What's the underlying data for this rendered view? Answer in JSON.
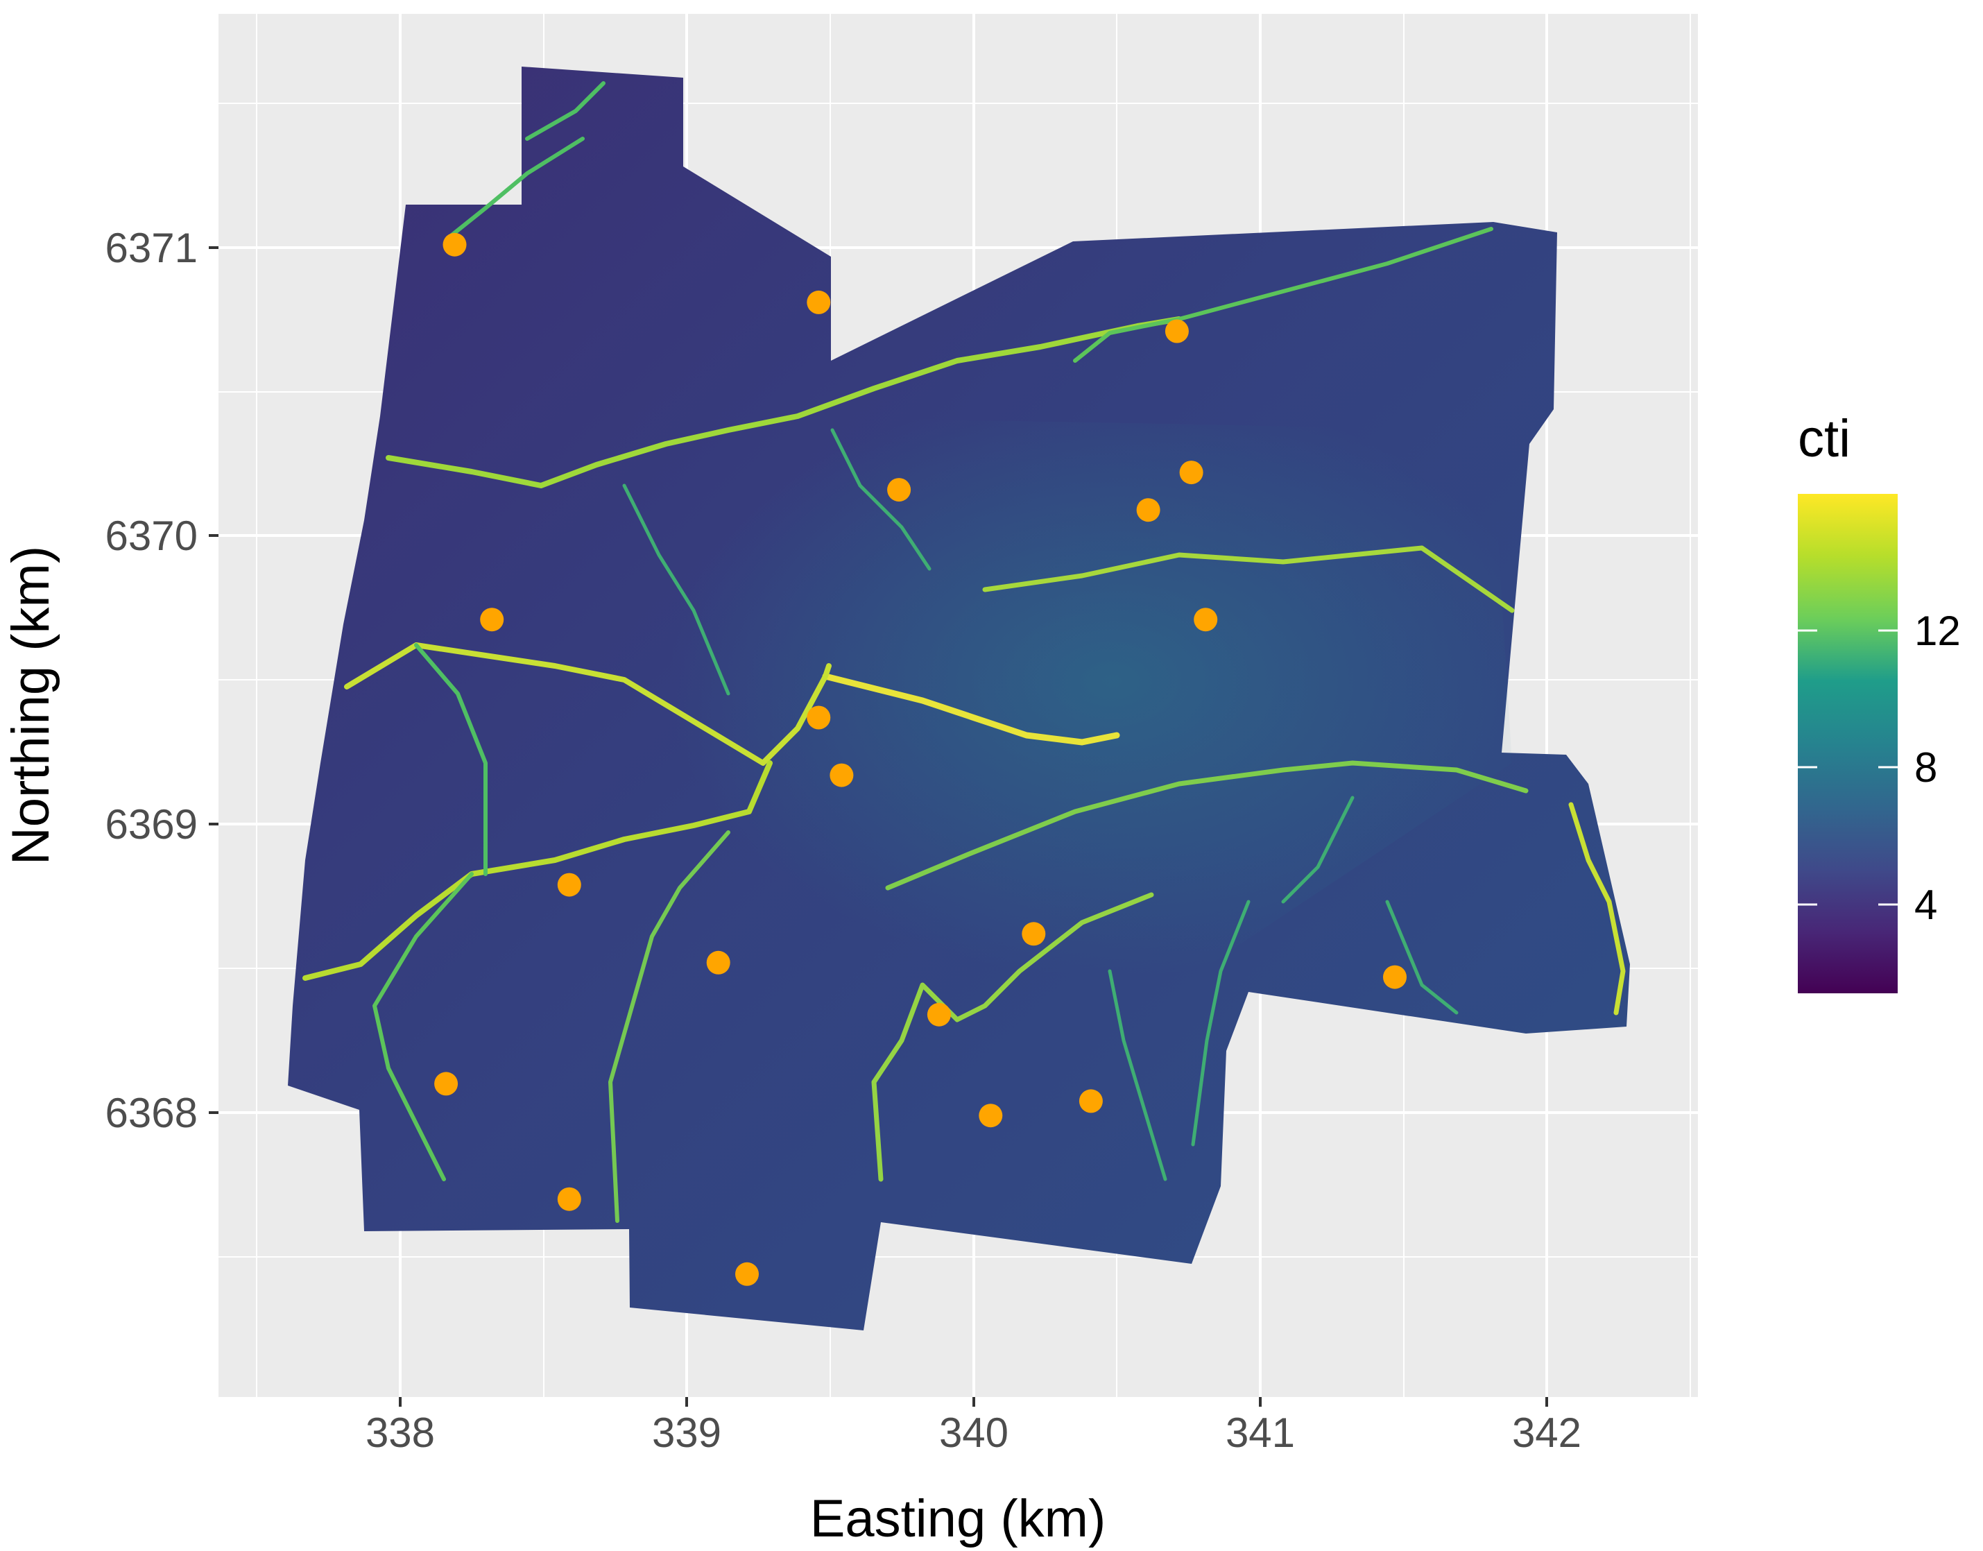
{
  "map": {
    "type": "raster-map",
    "xlabel": "Easting (km)",
    "ylabel": "Northing (km)",
    "x_ticks": [
      "338",
      "339",
      "340",
      "341",
      "342"
    ],
    "y_ticks": [
      "6368",
      "6369",
      "6370",
      "6371"
    ],
    "xlim": [
      337.45,
      342.55
    ],
    "ylim": [
      6367.1,
      6371.88
    ],
    "grid": true,
    "panel_background": "#ebebeb",
    "gridline_color": "#ffffff",
    "legend": {
      "title": "cti",
      "placement": "right",
      "labels": [
        "12",
        "8",
        "4"
      ],
      "tick_values": [
        12,
        8,
        4
      ],
      "range": [
        1.3,
        15.9
      ],
      "colormap": "viridis",
      "colors": [
        "#440154",
        "#482777",
        "#3f4a8a",
        "#31678e",
        "#26838f",
        "#1f9d8a",
        "#6cce5a",
        "#b6de2b",
        "#fee825"
      ]
    },
    "raster": {
      "description_color_low": "#3a2a6e",
      "description_color_high": "#f6e826"
    },
    "points": {
      "color": "#ffa500",
      "coordinates": [
        {
          "x": 338.19,
          "y": 6371.01
        },
        {
          "x": 339.46,
          "y": 6370.81
        },
        {
          "x": 340.71,
          "y": 6370.71
        },
        {
          "x": 339.74,
          "y": 6370.16
        },
        {
          "x": 340.76,
          "y": 6370.22
        },
        {
          "x": 340.61,
          "y": 6370.09
        },
        {
          "x": 338.32,
          "y": 6369.71
        },
        {
          "x": 340.81,
          "y": 6369.71
        },
        {
          "x": 339.46,
          "y": 6369.37
        },
        {
          "x": 339.54,
          "y": 6369.17
        },
        {
          "x": 338.59,
          "y": 6368.79
        },
        {
          "x": 340.21,
          "y": 6368.62
        },
        {
          "x": 339.11,
          "y": 6368.52
        },
        {
          "x": 341.47,
          "y": 6368.47
        },
        {
          "x": 339.88,
          "y": 6368.34
        },
        {
          "x": 338.16,
          "y": 6368.1
        },
        {
          "x": 340.41,
          "y": 6368.04
        },
        {
          "x": 340.06,
          "y": 6367.99
        },
        {
          "x": 338.59,
          "y": 6367.7
        },
        {
          "x": 339.21,
          "y": 6367.44
        }
      ]
    }
  }
}
